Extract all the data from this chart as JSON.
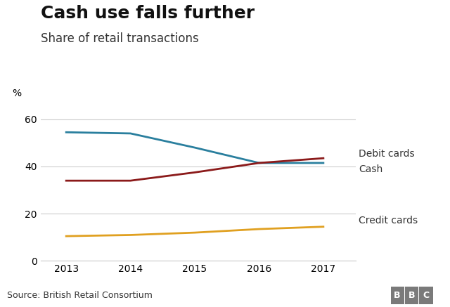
{
  "title": "Cash use falls further",
  "subtitle": "Share of retail transactions",
  "ylabel": "%",
  "source": "Source: British Retail Consortium",
  "years": [
    2013,
    2014,
    2015,
    2016,
    2017
  ],
  "debit_cards": [
    54.5,
    54.0,
    48.0,
    41.5,
    41.5
  ],
  "cash": [
    34.0,
    34.0,
    37.5,
    41.5,
    43.5
  ],
  "credit_cards": [
    10.5,
    11.0,
    12.0,
    13.5,
    14.5
  ],
  "debit_color": "#2a7f9e",
  "cash_color": "#8b1a1a",
  "credit_color": "#e0a020",
  "ylim": [
    0,
    65
  ],
  "yticks": [
    0,
    20,
    40,
    60
  ],
  "background_color": "#ffffff",
  "grid_color": "#cccccc",
  "title_fontsize": 18,
  "subtitle_fontsize": 12,
  "label_fontsize": 10,
  "annotation_fontsize": 10,
  "source_fontsize": 9,
  "line_width": 2.0,
  "footer_bg": "#e0e0e0",
  "bbc_bg": "#7a7a7a",
  "bbc_text": "#ffffff"
}
